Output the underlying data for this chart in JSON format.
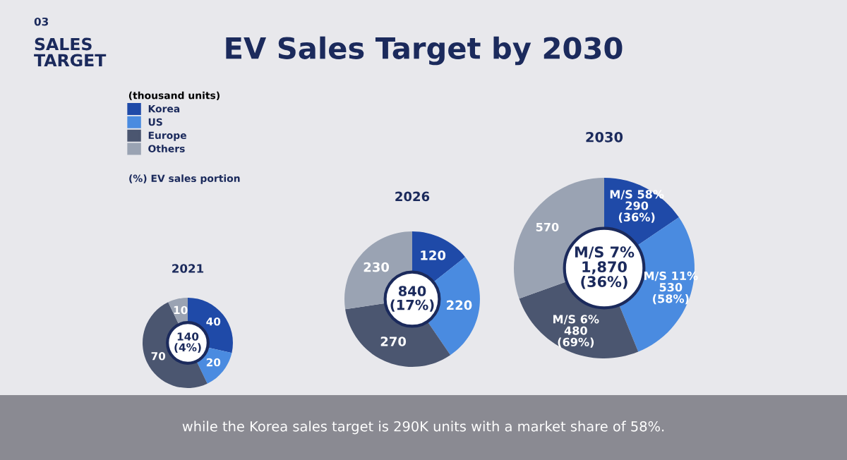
{
  "chart_data": [
    {
      "type": "donut",
      "title": "2021",
      "categories": [
        "Korea",
        "US",
        "Europe",
        "Others"
      ],
      "values": [
        40,
        20,
        70,
        10
      ],
      "colors": [
        "#1f4aa8",
        "#4a8be0",
        "#4b5670",
        "#9aa3b3"
      ],
      "value_labels": [
        "40",
        "20",
        "70",
        "10"
      ],
      "legend": "top left",
      "legend_title": "(thousand units)",
      "annotations": [
        "140\n(4%)",
        "(%) EV sales portion",
        "03",
        "SALES\nTARGET",
        "EV Sales Target by 2030",
        "while the Korea sales target is 290K units with a market share of 58%."
      ]
    },
    {
      "type": "donut",
      "title": "2026",
      "categories": [
        null,
        null,
        null,
        null
      ],
      "values": [
        120,
        220,
        270,
        230
      ],
      "colors": [
        "#1f4aa8",
        "#4a8be0",
        "#4b5670",
        "#9aa3b3"
      ],
      "value_labels": [
        "120",
        "220",
        "270",
        "230"
      ],
      "annotations": [
        "840\n(17%)"
      ]
    },
    {
      "type": "donut",
      "title": "2030",
      "categories": [
        null,
        null,
        null,
        null
      ],
      "values": [
        290,
        530,
        480,
        570
      ],
      "colors": [
        "#1f4aa8",
        "#4a8be0",
        "#4b5670",
        "#9aa3b3"
      ],
      "value_labels": [
        "M/S 58%\n290\n(36%)",
        "M/S 11%\n530\n(58%)",
        "M/S 6%\n480\n(69%)",
        "570"
      ],
      "annotations": [
        "M/S 7%\n1,870\n(36%)"
      ]
    }
  ]
}
